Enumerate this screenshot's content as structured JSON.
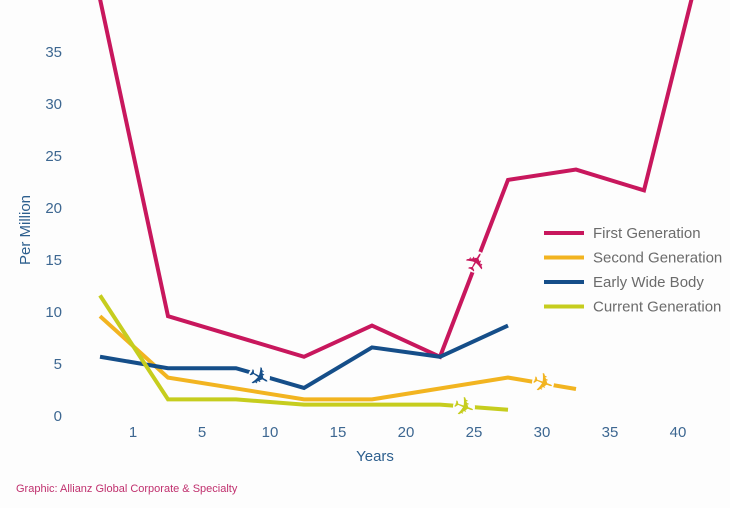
{
  "chart_data": {
    "type": "line",
    "title": "",
    "xlabel": "Years",
    "ylabel": "Per Million",
    "xticks": [
      1,
      5,
      10,
      15,
      20,
      25,
      30,
      35,
      40
    ],
    "yticks": [
      0,
      5,
      10,
      15,
      20,
      25,
      30,
      35
    ],
    "ylim": [
      0,
      39
    ],
    "grid": false,
    "legend_position": "right",
    "series": [
      {
        "name": "First Generation",
        "color": "#c8175d",
        "x": [
          -2.5,
          2.5,
          12.5,
          17.5,
          22.5,
          27.5,
          32.5,
          37.5,
          41
        ],
        "y": [
          40,
          9.5,
          5.6,
          8.6,
          5.6,
          22.6,
          23.6,
          21.6,
          40
        ]
      },
      {
        "name": "Second Generation",
        "color": "#f2b420",
        "x": [
          -2.5,
          2.5,
          12.5,
          17.5,
          27.5,
          32.5
        ],
        "y": [
          9.5,
          3.6,
          1.5,
          1.5,
          3.6,
          2.5
        ]
      },
      {
        "name": "Early Wide Body",
        "color": "#154e89",
        "x": [
          -2.5,
          2.5,
          7.5,
          12.5,
          17.5,
          22.5,
          27.5
        ],
        "y": [
          5.6,
          4.5,
          4.5,
          2.6,
          6.5,
          5.6,
          8.6
        ]
      },
      {
        "name": "Current Generation",
        "color": "#c6cd1e",
        "x": [
          -2.5,
          2.5,
          7.5,
          12.5,
          17.5,
          22.5,
          27.5
        ],
        "y": [
          11.5,
          1.5,
          1.5,
          1.0,
          1.0,
          1.0,
          0.5
        ]
      }
    ]
  },
  "credit": "Graphic: Allianz Global Corporate & Specialty",
  "icons": {
    "series_marker": "airplane-icon"
  }
}
